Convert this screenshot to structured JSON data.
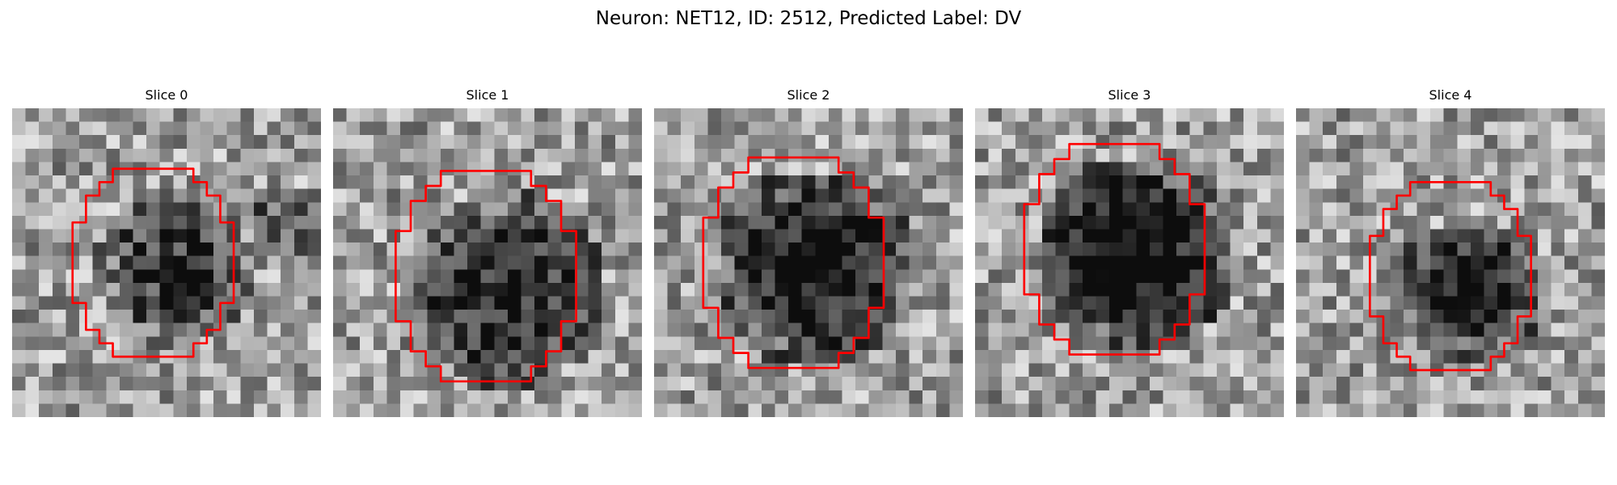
{
  "figure": {
    "title": "Neuron: NET12, ID: 2512, Predicted Label: DV"
  },
  "panels": [
    {
      "title": "Slice 0",
      "blob": {
        "cx": 11.5,
        "cy": 11.5,
        "r": 4.5,
        "dark": 0.45
      },
      "side_blob": {
        "cx": 20.0,
        "cy": 8.0,
        "r": 3.0,
        "dark": 0.25
      },
      "contour_offset": [
        0,
        0
      ],
      "contour_scale": 1.0
    },
    {
      "title": "Slice 1",
      "blob": {
        "cx": 12.5,
        "cy": 13.0,
        "r": 6.0,
        "dark": 0.55
      },
      "contour_offset": [
        1,
        1
      ],
      "contour_scale": 1.12
    },
    {
      "title": "Slice 2",
      "blob": {
        "cx": 11.5,
        "cy": 11.5,
        "r": 6.0,
        "dark": 0.65
      },
      "contour_offset": [
        0,
        0
      ],
      "contour_scale": 1.12
    },
    {
      "title": "Slice 3",
      "blob": {
        "cx": 11.5,
        "cy": 10.5,
        "r": 6.0,
        "dark": 0.7
      },
      "contour_offset": [
        0,
        -1
      ],
      "contour_scale": 1.12
    },
    {
      "title": "Slice 4",
      "blob": {
        "cx": 12.5,
        "cy": 13.0,
        "r": 4.0,
        "dark": 0.6
      },
      "contour_offset": [
        1,
        1
      ],
      "contour_scale": 1.0
    }
  ],
  "colors": {
    "contour": "#ff0000"
  }
}
